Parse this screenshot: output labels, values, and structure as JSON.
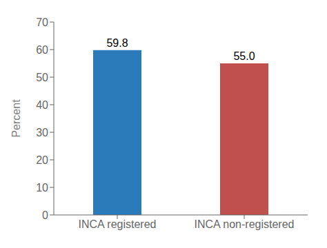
{
  "chart_data": {
    "type": "bar",
    "categories": [
      "INCA registered",
      "INCA non-registered"
    ],
    "values": [
      59.8,
      55.0
    ],
    "value_labels": [
      "59.8",
      "55.0"
    ],
    "colors": [
      "#2b7bba",
      "#c0504d"
    ],
    "ylabel": "Percent",
    "ylim": [
      0,
      70
    ],
    "yticks": [
      0,
      10,
      20,
      30,
      40,
      50,
      60,
      70
    ],
    "data_labels": true,
    "grid": false
  }
}
